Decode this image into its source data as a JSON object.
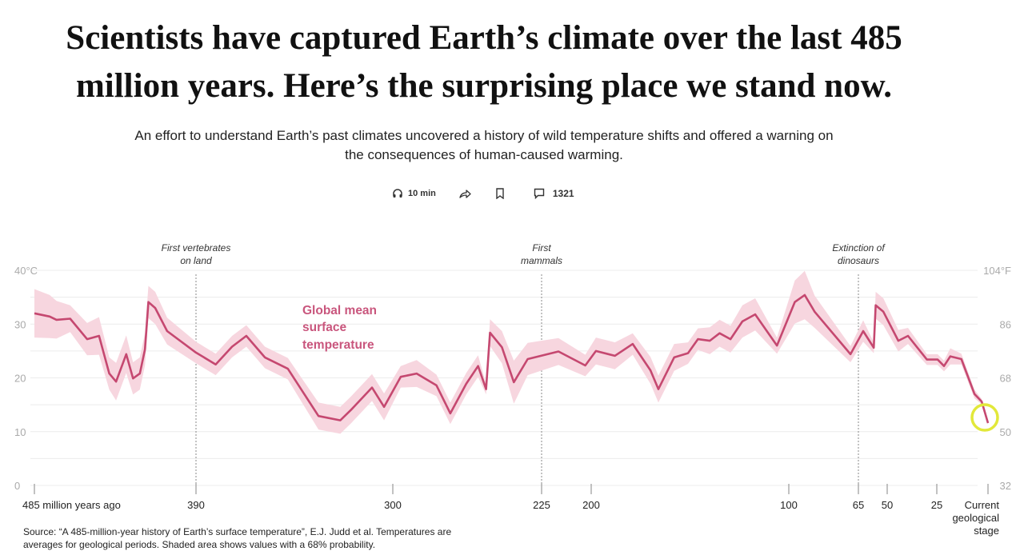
{
  "headline": {
    "line1": "Scientists have captured Earth’s climate over the last 485",
    "line2": "million years. Here’s the surprising place we stand now."
  },
  "subheadline": {
    "line1": "An effort to understand Earth’s past climates uncovered a history of wild temperature shifts and offered a warning on",
    "line2": "the consequences of human-caused warming."
  },
  "meta": {
    "listen_icon": "headphones-icon",
    "listen_label": "10 min",
    "share_icon": "share-arrow-icon",
    "bookmark_icon": "bookmark-icon",
    "comments_icon": "comment-icon",
    "comments_count": "1321"
  },
  "source": {
    "line1": "Source: “A 485-million-year history of Earth’s surface temperature”, E.J. Judd et al. Temperatures are",
    "line2": "averages for geological periods. Shaded area shows values with a 68% probability."
  },
  "chart_data": {
    "type": "line",
    "series_label": [
      "Global mean",
      "surface",
      "temperature"
    ],
    "x_unit": "million years ago",
    "x_ticks": [
      {
        "value": 485,
        "label": "485 million years ago"
      },
      {
        "value": 390,
        "label": "390"
      },
      {
        "value": 300,
        "label": "300"
      },
      {
        "value": 225,
        "label": "225"
      },
      {
        "value": 200,
        "label": "200"
      },
      {
        "value": 100,
        "label": "100"
      },
      {
        "value": 65,
        "label": "65"
      },
      {
        "value": 50,
        "label": "50"
      },
      {
        "value": 25,
        "label": "25"
      },
      {
        "value": 0,
        "label": "Current geological stage"
      }
    ],
    "y_left_ticks": [
      {
        "value": 40,
        "label": "40°C"
      },
      {
        "value": 30,
        "label": "30"
      },
      {
        "value": 20,
        "label": "20"
      },
      {
        "value": 10,
        "label": "10"
      },
      {
        "value": 0,
        "label": "0"
      }
    ],
    "y_right_ticks": [
      {
        "value": 40,
        "label": "104°F"
      },
      {
        "value": 30,
        "label": "86"
      },
      {
        "value": 20,
        "label": "68"
      },
      {
        "value": 10,
        "label": "50"
      },
      {
        "value": 0,
        "label": "32"
      }
    ],
    "ylim": [
      0,
      40
    ],
    "xlim": [
      485,
      0
    ],
    "grid": true,
    "annotations": [
      {
        "at": 390,
        "lines": [
          "First vertebrates",
          "on land"
        ]
      },
      {
        "at": 225,
        "lines": [
          "First",
          "mammals"
        ]
      },
      {
        "at": 65,
        "lines": [
          "Extinction of",
          "dinosaurs"
        ]
      }
    ],
    "colors": {
      "line": "#c54870",
      "band": "#f7d6df",
      "label": "#c9567d",
      "grid": "#ececec",
      "highlight": "#e2e83a"
    },
    "ages": [
      485,
      476,
      472,
      464,
      454,
      447,
      441,
      437,
      431,
      427,
      423,
      420,
      418,
      414,
      407,
      390,
      381,
      373.5,
      367,
      358.5,
      348,
      334,
      324,
      319,
      309.5,
      304,
      296,
      288,
      278,
      271,
      263,
      257,
      253,
      251,
      245,
      239,
      232,
      216.5,
      203,
      197.6,
      188,
      179,
      170,
      166,
      158,
      151,
      146,
      140,
      135,
      129.5,
      123.5,
      117,
      106,
      97,
      92,
      87,
      69,
      62.5,
      57,
      56,
      52,
      44.4,
      39.5,
      30,
      24.6,
      21.5,
      18.4,
      13,
      6.6,
      3.1,
      0
    ],
    "temperature_c": [
      32,
      31.4,
      30.8,
      31,
      27.2,
      27.8,
      20.8,
      19.3,
      24.4,
      19.9,
      20.8,
      25.3,
      34.1,
      33,
      28.7,
      24.7,
      22.5,
      25.8,
      27.8,
      23.8,
      21.7,
      12.9,
      12.1,
      14.1,
      18.2,
      14.6,
      20.2,
      20.8,
      18.6,
      13.4,
      18.9,
      22.2,
      17.9,
      28.4,
      25.7,
      19.2,
      23.5,
      24.9,
      22.3,
      25,
      24.1,
      26.3,
      21.4,
      17.9,
      23.8,
      24.6,
      27.2,
      26.9,
      28.3,
      27.2,
      30.5,
      31.8,
      26,
      34.1,
      35.4,
      32.3,
      24.4,
      28.7,
      25.6,
      33.5,
      32.3,
      26.9,
      27.8,
      23.4,
      23.4,
      22.2,
      24,
      23.5,
      17,
      15.6,
      11.6
    ],
    "band_halfwidth_c": [
      4.5,
      4,
      3.5,
      2.5,
      3,
      3.5,
      3,
      3.5,
      3.5,
      3,
      3,
      3,
      3,
      3,
      2.5,
      2,
      2,
      2,
      2,
      2,
      2,
      2.5,
      2.5,
      2.5,
      2.5,
      2.5,
      2,
      2.5,
      2,
      2,
      2,
      2,
      1,
      2.5,
      3,
      4,
      3,
      2.5,
      2,
      2.5,
      2.5,
      2,
      2.5,
      2.5,
      2.5,
      2,
      2,
      2.5,
      2.5,
      2.5,
      3,
      3,
      1.5,
      4,
      4.5,
      3,
      1.5,
      2,
      1,
      2.5,
      2.5,
      2,
      1.5,
      1,
      1,
      1,
      1.5,
      1,
      0.8,
      0.5,
      0.3
    ]
  }
}
